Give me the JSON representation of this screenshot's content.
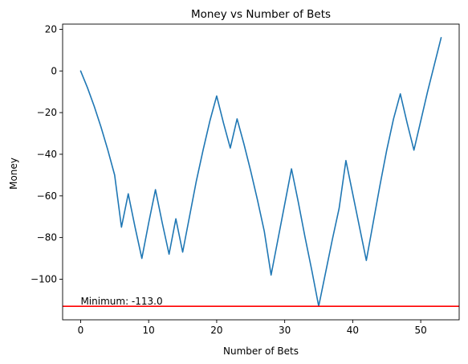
{
  "chart_data": {
    "type": "line",
    "title": "Money vs Number of Bets",
    "xlabel": "Number of Bets",
    "ylabel": "Money",
    "xlim": [
      -2.65,
      55.65
    ],
    "ylim": [
      -119.5,
      22.5
    ],
    "xticks": [
      0,
      10,
      20,
      30,
      40,
      50
    ],
    "yticks": [
      -100,
      -80,
      -60,
      -40,
      -20,
      0,
      20
    ],
    "grid": false,
    "series": [
      {
        "color": "#1f77b4",
        "x": [
          0,
          1,
          2,
          3,
          4,
          5,
          6,
          7,
          8,
          9,
          10,
          11,
          12,
          13,
          14,
          15,
          16,
          17,
          18,
          19,
          20,
          21,
          22,
          23,
          24,
          25,
          26,
          27,
          28,
          29,
          30,
          31,
          32,
          33,
          34,
          35,
          36,
          37,
          38,
          39,
          40,
          41,
          42,
          43,
          44,
          45,
          46,
          47,
          48,
          49,
          50,
          51,
          52,
          53
        ],
        "y": [
          0,
          -8,
          -17,
          -27,
          -38,
          -50,
          -75,
          -59,
          -75,
          -90,
          -73,
          -57,
          -73,
          -88,
          -71,
          -87,
          -70,
          -53,
          -38,
          -24,
          -12,
          -25,
          -37,
          -23,
          -35,
          -48,
          -62,
          -77,
          -98,
          -81,
          -64,
          -47,
          -63,
          -80,
          -96,
          -113,
          -97,
          -81,
          -66,
          -43,
          -59,
          -75,
          -91,
          -73,
          -55,
          -38,
          -23,
          -11,
          -25,
          -38,
          -24,
          -10,
          3,
          16
        ]
      }
    ],
    "hline": {
      "y": -113.0,
      "color": "#ff0000"
    },
    "annotation": {
      "text": "Minimum: -113.0",
      "x": 0,
      "y": -113.0
    }
  }
}
